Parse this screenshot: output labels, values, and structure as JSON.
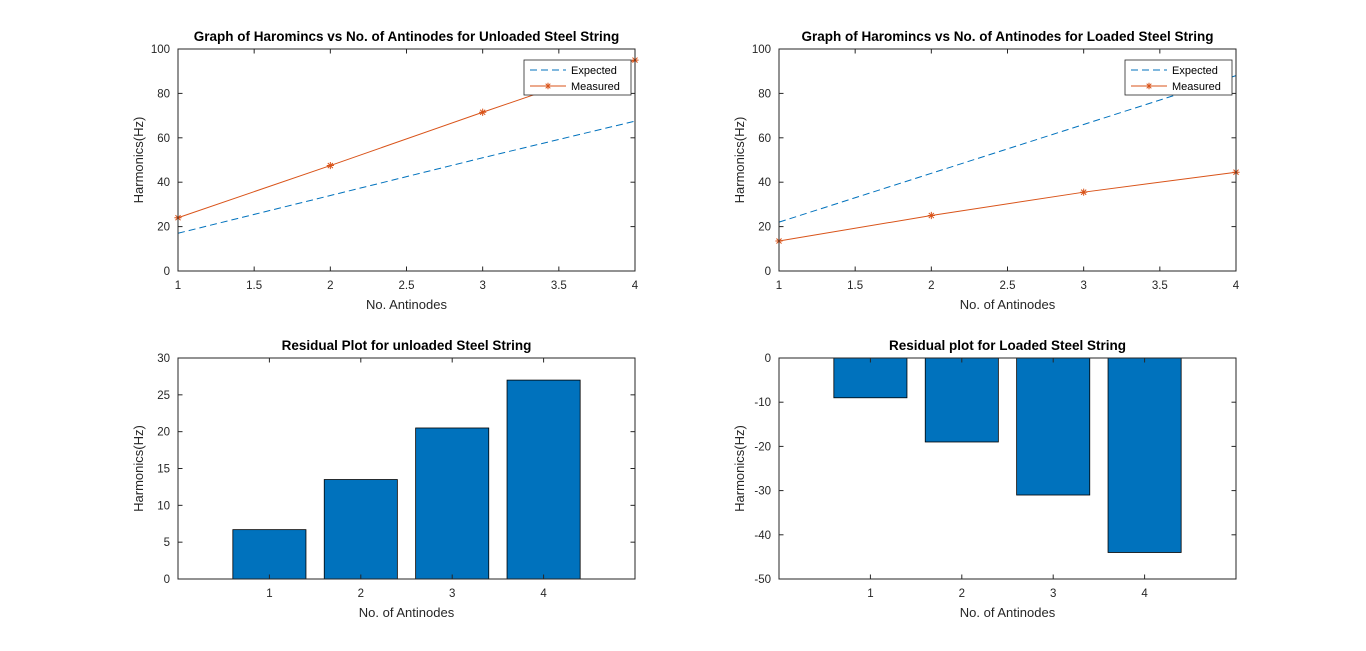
{
  "colors": {
    "expected": "#0072BD",
    "measured": "#D95319",
    "bar": "#0072BD",
    "axis": "#262626"
  },
  "chart_data": [
    {
      "type": "line",
      "title": "Graph of Haromincs vs No. of Antinodes for Unloaded Steel String",
      "xlabel": "No. Antinodes",
      "ylabel": "Harmonics(Hz)",
      "xlim": [
        1,
        4
      ],
      "ylim": [
        0,
        100
      ],
      "xticks": [
        "1",
        "1.5",
        "2",
        "2.5",
        "3",
        "3.5",
        "4"
      ],
      "xtick_values": [
        1,
        1.5,
        2,
        2.5,
        3,
        3.5,
        4
      ],
      "yticks": [
        "0",
        "20",
        "40",
        "60",
        "80",
        "100"
      ],
      "ytick_values": [
        0,
        20,
        40,
        60,
        80,
        100
      ],
      "legend": "top-right",
      "grid": false,
      "series": [
        {
          "name": "Expected",
          "style": "dashed",
          "marker": "none",
          "color_key": "expected",
          "x": [
            1,
            2,
            3,
            4
          ],
          "y": [
            17,
            34,
            51,
            67.5
          ]
        },
        {
          "name": "Measured",
          "style": "solid",
          "marker": "star",
          "color_key": "measured",
          "x": [
            1,
            2,
            3,
            4
          ],
          "y": [
            24,
            47.5,
            71.5,
            95
          ]
        }
      ]
    },
    {
      "type": "line",
      "title": "Graph of Haromincs vs No. of Antinodes for Loaded Steel String",
      "xlabel": "No. of Antinodes",
      "ylabel": "Harmonics(Hz)",
      "xlim": [
        1,
        4
      ],
      "ylim": [
        0,
        100
      ],
      "xticks": [
        "1",
        "1.5",
        "2",
        "2.5",
        "3",
        "3.5",
        "4"
      ],
      "xtick_values": [
        1,
        1.5,
        2,
        2.5,
        3,
        3.5,
        4
      ],
      "yticks": [
        "0",
        "20",
        "40",
        "60",
        "80",
        "100"
      ],
      "ytick_values": [
        0,
        20,
        40,
        60,
        80,
        100
      ],
      "legend": "top-right",
      "grid": false,
      "series": [
        {
          "name": "Expected",
          "style": "dashed",
          "marker": "none",
          "color_key": "expected",
          "x": [
            1,
            2,
            3,
            4
          ],
          "y": [
            22,
            44,
            66,
            88
          ]
        },
        {
          "name": "Measured",
          "style": "solid",
          "marker": "star",
          "color_key": "measured",
          "x": [
            1,
            2,
            3,
            4
          ],
          "y": [
            13.5,
            25,
            35.5,
            44.5
          ]
        }
      ]
    },
    {
      "type": "bar",
      "title": "Residual Plot for unloaded Steel String",
      "xlabel": "No. of Antinodes",
      "ylabel": "Harmonics(Hz)",
      "xlim": [
        0,
        5
      ],
      "ylim": [
        0,
        30
      ],
      "categories": [
        "1",
        "2",
        "3",
        "4"
      ],
      "x": [
        1,
        2,
        3,
        4
      ],
      "values": [
        6.7,
        13.5,
        20.5,
        27
      ],
      "yticks": [
        "0",
        "5",
        "10",
        "15",
        "20",
        "25",
        "30"
      ],
      "ytick_values": [
        0,
        5,
        10,
        15,
        20,
        25,
        30
      ],
      "bar_width": 0.8,
      "grid": false
    },
    {
      "type": "bar",
      "title": "Residual plot for Loaded Steel String",
      "xlabel": "No. of Antinodes",
      "ylabel": "Harmonics(Hz)",
      "xlim": [
        0,
        5
      ],
      "ylim": [
        -50,
        0
      ],
      "categories": [
        "1",
        "2",
        "3",
        "4"
      ],
      "x": [
        1,
        2,
        3,
        4
      ],
      "values": [
        -9,
        -19,
        -31,
        -44
      ],
      "yticks": [
        "0",
        "-10",
        "-20",
        "-30",
        "-40",
        "-50"
      ],
      "ytick_values": [
        0,
        -10,
        -20,
        -30,
        -40,
        -50
      ],
      "bar_width": 0.8,
      "grid": false
    }
  ]
}
